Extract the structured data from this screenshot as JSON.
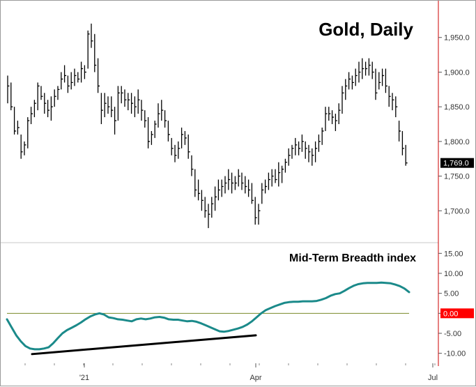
{
  "chart_data": [
    {
      "type": "ohlc",
      "title": "Gold, Daily",
      "yticks": [
        "1,950.0",
        "1,900.0",
        "1,850.0",
        "1,800.0",
        "1,750.0",
        "1,700.0"
      ],
      "ytick_values": [
        1950,
        1900,
        1850,
        1800,
        1750,
        1700
      ],
      "ylim": [
        1655,
        1995
      ],
      "last_value_label": "1,769.0",
      "last_value": 1769,
      "colors": {
        "bars": "#000000",
        "badge": "#000000",
        "axis": "#cc0000"
      },
      "bars": [
        {
          "h": 1895,
          "l": 1855,
          "c": 1880
        },
        {
          "h": 1885,
          "l": 1845,
          "c": 1850
        },
        {
          "h": 1850,
          "l": 1810,
          "c": 1815
        },
        {
          "h": 1830,
          "l": 1810,
          "c": 1820
        },
        {
          "h": 1810,
          "l": 1775,
          "c": 1785
        },
        {
          "h": 1800,
          "l": 1780,
          "c": 1795
        },
        {
          "h": 1835,
          "l": 1790,
          "c": 1830
        },
        {
          "h": 1850,
          "l": 1825,
          "c": 1840
        },
        {
          "h": 1860,
          "l": 1835,
          "c": 1855
        },
        {
          "h": 1885,
          "l": 1845,
          "c": 1880
        },
        {
          "h": 1880,
          "l": 1860,
          "c": 1865
        },
        {
          "h": 1870,
          "l": 1840,
          "c": 1855
        },
        {
          "h": 1860,
          "l": 1835,
          "c": 1845
        },
        {
          "h": 1865,
          "l": 1830,
          "c": 1850
        },
        {
          "h": 1875,
          "l": 1850,
          "c": 1865
        },
        {
          "h": 1880,
          "l": 1860,
          "c": 1875
        },
        {
          "h": 1900,
          "l": 1875,
          "c": 1890
        },
        {
          "h": 1910,
          "l": 1885,
          "c": 1895
        },
        {
          "h": 1895,
          "l": 1870,
          "c": 1880
        },
        {
          "h": 1900,
          "l": 1875,
          "c": 1885
        },
        {
          "h": 1905,
          "l": 1880,
          "c": 1895
        },
        {
          "h": 1900,
          "l": 1885,
          "c": 1890
        },
        {
          "h": 1915,
          "l": 1885,
          "c": 1905
        },
        {
          "h": 1910,
          "l": 1890,
          "c": 1900
        },
        {
          "h": 1960,
          "l": 1905,
          "c": 1955
        },
        {
          "h": 1970,
          "l": 1935,
          "c": 1945
        },
        {
          "h": 1955,
          "l": 1900,
          "c": 1910
        },
        {
          "h": 1920,
          "l": 1870,
          "c": 1880
        },
        {
          "h": 1870,
          "l": 1825,
          "c": 1845
        },
        {
          "h": 1870,
          "l": 1835,
          "c": 1855
        },
        {
          "h": 1865,
          "l": 1840,
          "c": 1850
        },
        {
          "h": 1865,
          "l": 1835,
          "c": 1845
        },
        {
          "h": 1850,
          "l": 1810,
          "c": 1830
        },
        {
          "h": 1880,
          "l": 1830,
          "c": 1870
        },
        {
          "h": 1880,
          "l": 1855,
          "c": 1870
        },
        {
          "h": 1875,
          "l": 1850,
          "c": 1860
        },
        {
          "h": 1870,
          "l": 1845,
          "c": 1860
        },
        {
          "h": 1870,
          "l": 1840,
          "c": 1855
        },
        {
          "h": 1865,
          "l": 1835,
          "c": 1850
        },
        {
          "h": 1875,
          "l": 1840,
          "c": 1860
        },
        {
          "h": 1860,
          "l": 1830,
          "c": 1845
        },
        {
          "h": 1845,
          "l": 1820,
          "c": 1830
        },
        {
          "h": 1835,
          "l": 1790,
          "c": 1800
        },
        {
          "h": 1815,
          "l": 1795,
          "c": 1810
        },
        {
          "h": 1830,
          "l": 1805,
          "c": 1825
        },
        {
          "h": 1855,
          "l": 1820,
          "c": 1840
        },
        {
          "h": 1860,
          "l": 1830,
          "c": 1845
        },
        {
          "h": 1845,
          "l": 1820,
          "c": 1830
        },
        {
          "h": 1830,
          "l": 1800,
          "c": 1810
        },
        {
          "h": 1805,
          "l": 1780,
          "c": 1790
        },
        {
          "h": 1795,
          "l": 1770,
          "c": 1780
        },
        {
          "h": 1800,
          "l": 1775,
          "c": 1790
        },
        {
          "h": 1820,
          "l": 1790,
          "c": 1810
        },
        {
          "h": 1815,
          "l": 1795,
          "c": 1805
        },
        {
          "h": 1810,
          "l": 1775,
          "c": 1785
        },
        {
          "h": 1780,
          "l": 1750,
          "c": 1760
        },
        {
          "h": 1760,
          "l": 1720,
          "c": 1730
        },
        {
          "h": 1745,
          "l": 1715,
          "c": 1725
        },
        {
          "h": 1730,
          "l": 1700,
          "c": 1715
        },
        {
          "h": 1720,
          "l": 1690,
          "c": 1700
        },
        {
          "h": 1710,
          "l": 1675,
          "c": 1695
        },
        {
          "h": 1720,
          "l": 1690,
          "c": 1710
        },
        {
          "h": 1735,
          "l": 1700,
          "c": 1720
        },
        {
          "h": 1745,
          "l": 1715,
          "c": 1730
        },
        {
          "h": 1745,
          "l": 1720,
          "c": 1735
        },
        {
          "h": 1750,
          "l": 1725,
          "c": 1740
        },
        {
          "h": 1760,
          "l": 1730,
          "c": 1745
        },
        {
          "h": 1755,
          "l": 1725,
          "c": 1740
        },
        {
          "h": 1750,
          "l": 1730,
          "c": 1740
        },
        {
          "h": 1760,
          "l": 1735,
          "c": 1750
        },
        {
          "h": 1755,
          "l": 1730,
          "c": 1740
        },
        {
          "h": 1750,
          "l": 1725,
          "c": 1735
        },
        {
          "h": 1745,
          "l": 1720,
          "c": 1730
        },
        {
          "h": 1740,
          "l": 1710,
          "c": 1715
        },
        {
          "h": 1720,
          "l": 1680,
          "c": 1690
        },
        {
          "h": 1710,
          "l": 1680,
          "c": 1700
        },
        {
          "h": 1740,
          "l": 1710,
          "c": 1730
        },
        {
          "h": 1745,
          "l": 1725,
          "c": 1735
        },
        {
          "h": 1755,
          "l": 1730,
          "c": 1745
        },
        {
          "h": 1760,
          "l": 1735,
          "c": 1750
        },
        {
          "h": 1760,
          "l": 1740,
          "c": 1745
        },
        {
          "h": 1770,
          "l": 1735,
          "c": 1755
        },
        {
          "h": 1765,
          "l": 1740,
          "c": 1760
        },
        {
          "h": 1775,
          "l": 1755,
          "c": 1770
        },
        {
          "h": 1790,
          "l": 1765,
          "c": 1780
        },
        {
          "h": 1795,
          "l": 1775,
          "c": 1790
        },
        {
          "h": 1805,
          "l": 1780,
          "c": 1795
        },
        {
          "h": 1800,
          "l": 1780,
          "c": 1790
        },
        {
          "h": 1810,
          "l": 1785,
          "c": 1800
        },
        {
          "h": 1800,
          "l": 1775,
          "c": 1790
        },
        {
          "h": 1795,
          "l": 1770,
          "c": 1785
        },
        {
          "h": 1790,
          "l": 1765,
          "c": 1780
        },
        {
          "h": 1800,
          "l": 1770,
          "c": 1790
        },
        {
          "h": 1810,
          "l": 1785,
          "c": 1800
        },
        {
          "h": 1820,
          "l": 1795,
          "c": 1815
        },
        {
          "h": 1850,
          "l": 1815,
          "c": 1840
        },
        {
          "h": 1850,
          "l": 1830,
          "c": 1840
        },
        {
          "h": 1845,
          "l": 1825,
          "c": 1835
        },
        {
          "h": 1840,
          "l": 1815,
          "c": 1830
        },
        {
          "h": 1855,
          "l": 1825,
          "c": 1845
        },
        {
          "h": 1880,
          "l": 1840,
          "c": 1870
        },
        {
          "h": 1890,
          "l": 1860,
          "c": 1880
        },
        {
          "h": 1900,
          "l": 1875,
          "c": 1890
        },
        {
          "h": 1895,
          "l": 1875,
          "c": 1885
        },
        {
          "h": 1905,
          "l": 1880,
          "c": 1895
        },
        {
          "h": 1915,
          "l": 1885,
          "c": 1900
        },
        {
          "h": 1920,
          "l": 1890,
          "c": 1905
        },
        {
          "h": 1915,
          "l": 1895,
          "c": 1905
        },
        {
          "h": 1920,
          "l": 1895,
          "c": 1910
        },
        {
          "h": 1915,
          "l": 1890,
          "c": 1900
        },
        {
          "h": 1905,
          "l": 1860,
          "c": 1870
        },
        {
          "h": 1900,
          "l": 1875,
          "c": 1885
        },
        {
          "h": 1905,
          "l": 1880,
          "c": 1895
        },
        {
          "h": 1905,
          "l": 1870,
          "c": 1880
        },
        {
          "h": 1880,
          "l": 1850,
          "c": 1865
        },
        {
          "h": 1870,
          "l": 1845,
          "c": 1860
        },
        {
          "h": 1865,
          "l": 1835,
          "c": 1850
        },
        {
          "h": 1830,
          "l": 1800,
          "c": 1815
        },
        {
          "h": 1815,
          "l": 1780,
          "c": 1790
        },
        {
          "h": 1795,
          "l": 1765,
          "c": 1769
        }
      ]
    },
    {
      "type": "line",
      "title": "Mid-Term Breadth index",
      "yticks": [
        "15.00",
        "10.00",
        "5.00",
        "0.00",
        "-5.00",
        "-10.00"
      ],
      "ytick_values": [
        15,
        10,
        5,
        0,
        -5,
        -10
      ],
      "ylim": [
        -12.5,
        17.5
      ],
      "zero_label": "0.00",
      "colors": {
        "line": "#1b8a8a",
        "zero_line": "#7a8a2a",
        "trendline": "#000000",
        "badge": "#ff0000"
      },
      "series": [
        {
          "values": [
            -1.5,
            -3.5,
            -5.5,
            -7.0,
            -8.2,
            -8.8,
            -9.0,
            -9.0,
            -8.8,
            -8.5,
            -7.5,
            -6.2,
            -5.0,
            -4.2,
            -3.6,
            -3.0,
            -2.3,
            -1.5,
            -0.8,
            -0.3,
            0.0,
            -0.3,
            -1.0,
            -1.2,
            -1.5,
            -1.6,
            -1.8,
            -2.0,
            -1.5,
            -1.3,
            -1.5,
            -1.3,
            -1.0,
            -0.9,
            -1.1,
            -1.5,
            -1.6,
            -1.6,
            -1.8,
            -2.0,
            -1.9,
            -2.1,
            -2.5,
            -3.0,
            -3.5,
            -4.0,
            -4.5,
            -4.6,
            -4.4,
            -4.1,
            -3.8,
            -3.4,
            -2.8,
            -2.0,
            -1.0,
            0.0,
            0.8,
            1.3,
            1.8,
            2.2,
            2.6,
            2.8,
            2.9,
            2.9,
            3.0,
            3.0,
            3.0,
            3.1,
            3.4,
            3.8,
            4.4,
            4.8,
            5.0,
            5.6,
            6.3,
            6.9,
            7.3,
            7.5,
            7.6,
            7.6,
            7.6,
            7.7,
            7.6,
            7.5,
            7.2,
            6.8,
            6.2,
            5.3
          ]
        }
      ],
      "trendline": [
        -10.2,
        -5.5
      ]
    }
  ],
  "x_axis": {
    "labels": [
      "'21",
      "Apr",
      "Jul"
    ]
  }
}
